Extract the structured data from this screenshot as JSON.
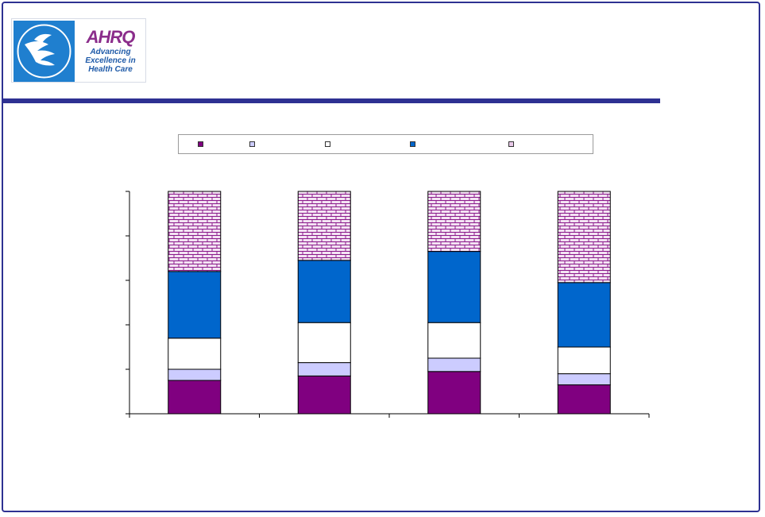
{
  "logo": {
    "brand": "AHRQ",
    "tagline_lines": [
      "Advancing",
      "Excellence in",
      "Health Care"
    ],
    "seal_icon": "hhs-eagle-seal-icon"
  },
  "colors": {
    "frame": "#2e3192",
    "rule": "#2e3192"
  },
  "chart_data": {
    "type": "bar",
    "stacked": true,
    "categories": [
      "",
      "",
      "",
      ""
    ],
    "title": "",
    "xlabel": "",
    "ylabel": "",
    "ylim": [
      0,
      1
    ],
    "yticks": [
      0,
      0.2,
      0.4,
      0.6,
      0.8,
      1.0
    ],
    "grid": false,
    "legend_position": "top",
    "series": [
      {
        "name": "",
        "color": "#800080",
        "pattern": "solid",
        "values": [
          0.15,
          0.17,
          0.19,
          0.13
        ]
      },
      {
        "name": "",
        "color": "#ccccff",
        "pattern": "solid",
        "values": [
          0.05,
          0.06,
          0.06,
          0.05
        ]
      },
      {
        "name": "",
        "color": "#ffffff",
        "pattern": "solid",
        "values": [
          0.14,
          0.18,
          0.16,
          0.12
        ]
      },
      {
        "name": "",
        "color": "#0066cc",
        "pattern": "solid",
        "values": [
          0.3,
          0.28,
          0.32,
          0.29
        ]
      },
      {
        "name": "",
        "color": "#cc99cc",
        "pattern": "brick",
        "values": [
          0.36,
          0.31,
          0.27,
          0.41
        ]
      }
    ]
  }
}
